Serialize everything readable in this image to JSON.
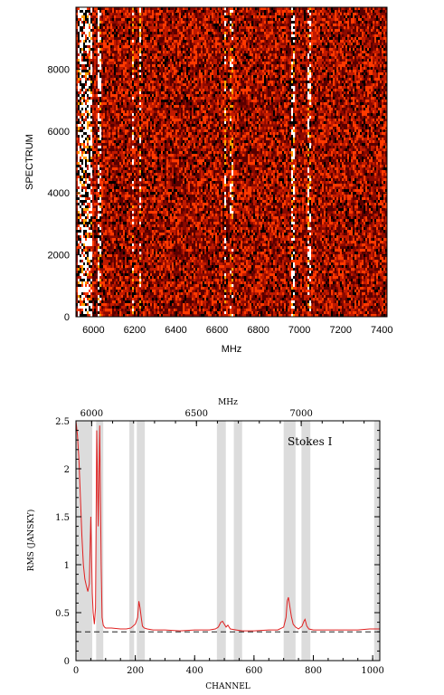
{
  "chart_data": [
    {
      "type": "heatmap",
      "title": "",
      "xlabel": "MHz",
      "ylabel": "SPECTRUM",
      "xlim": [
        5915,
        7425
      ],
      "ylim": [
        0,
        10000
      ],
      "x_ticks": [
        6000,
        6200,
        6400,
        6600,
        6800,
        7000,
        7200,
        7400
      ],
      "y_ticks": [
        0,
        2000,
        4000,
        6000,
        8000
      ],
      "x_tick_labels": [
        "6000",
        "6200",
        "6400",
        "6600",
        "6800",
        "7000",
        "7200",
        "7400"
      ],
      "y_tick_labels": [
        "0",
        "2000",
        "4000",
        "6000",
        "8000"
      ],
      "colormap": [
        "#000000",
        "#5a0000",
        "#8b0a00",
        "#c01a00",
        "#ff3a00",
        "#ffa000",
        "#ffffff"
      ],
      "rfi_bands_mhz": [
        {
          "center": 5960,
          "width": 70,
          "intensity": 1.0
        },
        {
          "center": 6030,
          "width": 14,
          "intensity": 0.95
        },
        {
          "center": 6195,
          "width": 10,
          "intensity": 0.55
        },
        {
          "center": 6225,
          "width": 10,
          "intensity": 0.6
        },
        {
          "center": 6640,
          "width": 12,
          "intensity": 0.55
        },
        {
          "center": 6670,
          "width": 10,
          "intensity": 0.5
        },
        {
          "center": 6965,
          "width": 16,
          "intensity": 0.85
        },
        {
          "center": 7050,
          "width": 14,
          "intensity": 0.75
        }
      ],
      "grid": false
    },
    {
      "type": "line",
      "title": "",
      "annotation": "Stokes I",
      "xlabel": "CHANNEL",
      "ylabel": "RMS (JANSKY)",
      "top_axis_label": "MHz",
      "xlim": [
        0,
        1024
      ],
      "ylim": [
        0,
        2.5
      ],
      "x_ticks": [
        0,
        200,
        400,
        600,
        800,
        1000
      ],
      "x_tick_labels": [
        "0",
        "200",
        "400",
        "600",
        "800",
        "1000"
      ],
      "y_ticks": [
        0,
        0.5,
        1,
        1.5,
        2,
        2.5
      ],
      "y_tick_labels": [
        "0",
        "0.5",
        "1",
        "1.5",
        "2",
        "2.5"
      ],
      "top_ticks_mhz": [
        6000,
        6500,
        7000
      ],
      "top_tick_labels": [
        "6000",
        "6500",
        "7000"
      ],
      "top_mhz_range": [
        5925,
        7375
      ],
      "reference_line": 0.3,
      "flagged_ranges": [
        [
          0,
          55
        ],
        [
          68,
          92
        ],
        [
          180,
          196
        ],
        [
          205,
          232
        ],
        [
          475,
          505
        ],
        [
          532,
          560
        ],
        [
          700,
          740
        ],
        [
          760,
          790
        ],
        [
          1005,
          1024
        ]
      ],
      "series": [
        {
          "color": "#e02020",
          "x": [
            0,
            5,
            10,
            15,
            20,
            25,
            30,
            35,
            40,
            45,
            50,
            55,
            58,
            62,
            66,
            70,
            75,
            80,
            85,
            88,
            92,
            96,
            100,
            120,
            150,
            170,
            185,
            200,
            208,
            212,
            216,
            220,
            224,
            230,
            240,
            260,
            300,
            350,
            400,
            450,
            470,
            480,
            488,
            494,
            500,
            506,
            512,
            520,
            540,
            560,
            600,
            650,
            680,
            700,
            708,
            712,
            716,
            720,
            726,
            732,
            740,
            750,
            762,
            768,
            772,
            778,
            785,
            800,
            850,
            900,
            950,
            990,
            1024
          ],
          "y": [
            2.5,
            2.35,
            2.1,
            1.7,
            1.3,
            1.0,
            0.85,
            0.78,
            0.72,
            0.8,
            1.5,
            0.7,
            0.5,
            0.38,
            0.55,
            2.4,
            1.4,
            2.45,
            1.0,
            0.45,
            0.37,
            0.35,
            0.34,
            0.34,
            0.33,
            0.33,
            0.34,
            0.38,
            0.45,
            0.62,
            0.55,
            0.45,
            0.36,
            0.34,
            0.33,
            0.32,
            0.32,
            0.31,
            0.32,
            0.32,
            0.33,
            0.35,
            0.4,
            0.41,
            0.38,
            0.35,
            0.37,
            0.33,
            0.32,
            0.31,
            0.31,
            0.32,
            0.32,
            0.35,
            0.45,
            0.62,
            0.66,
            0.58,
            0.46,
            0.38,
            0.35,
            0.33,
            0.36,
            0.41,
            0.43,
            0.36,
            0.33,
            0.32,
            0.32,
            0.32,
            0.32,
            0.33,
            0.33
          ]
        }
      ],
      "grid": false
    }
  ]
}
